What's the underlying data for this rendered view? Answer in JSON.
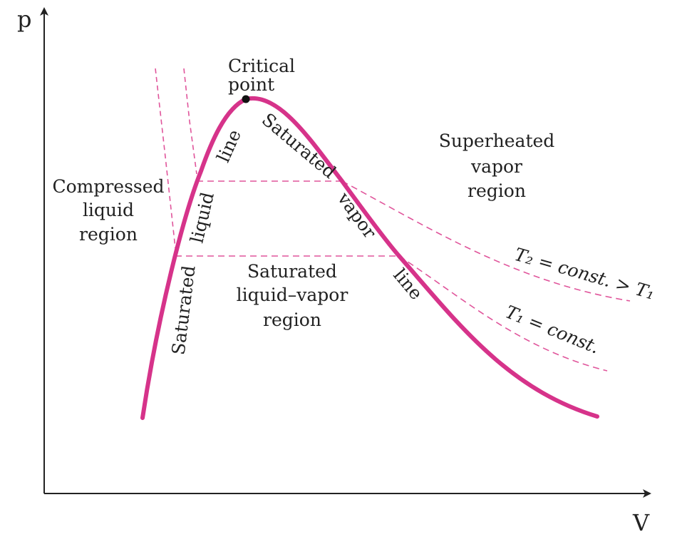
{
  "axes": {
    "y_label": "p",
    "x_label": "V"
  },
  "labels": {
    "critical_point_line1": "Critical",
    "critical_point_line2": "point",
    "compressed_line1": "Compressed",
    "compressed_line2": "liquid",
    "compressed_line3": "region",
    "superheated_line1": "Superheated",
    "superheated_line2": "vapor",
    "superheated_line3": "region",
    "mixture_line1": "Saturated",
    "mixture_line2": "liquid–vapor",
    "mixture_line3": "region",
    "sat_liquid_word1": "Saturated",
    "sat_liquid_word2": "liquid",
    "sat_liquid_word3": "line",
    "sat_vapor_word1": "Saturated",
    "sat_vapor_word2": "vapor",
    "sat_vapor_word3": "line",
    "isotherm_t2": "T₂ = const. > T₁",
    "isotherm_t1": "T₁ = const."
  },
  "colors": {
    "dome": "#d6338a",
    "isotherm": "#e0559b",
    "axis": "#222222",
    "text": "#222222"
  }
}
